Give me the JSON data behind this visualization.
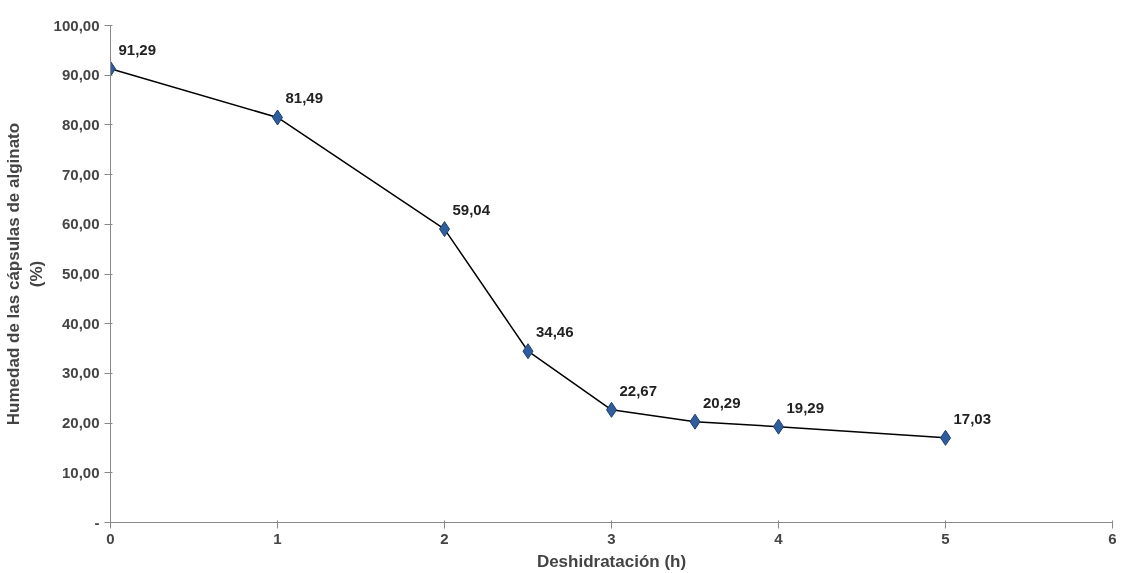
{
  "chart_data": {
    "type": "line",
    "xlabel": "Deshidratación (h)",
    "ylabel": "Humedad de las cápsulas de alginato\n(%)",
    "x": [
      0,
      1,
      2,
      2.5,
      3,
      3.5,
      4,
      5
    ],
    "series": [
      {
        "color": "#2e5e9e",
        "values": [
          91.29,
          81.49,
          59.04,
          34.46,
          22.67,
          20.29,
          19.29,
          17.03
        ],
        "value_labels": [
          "91,29",
          "81,49",
          "59,04",
          "34,46",
          "22,67",
          "20,29",
          "19,29",
          "17,03"
        ]
      }
    ],
    "xlim": [
      0,
      6
    ],
    "xticks": [
      0,
      1,
      2,
      3,
      4,
      5,
      6
    ],
    "ylim": [
      0,
      100
    ],
    "yticks": [
      {
        "value": 0,
        "label": "-"
      },
      {
        "value": 10,
        "label": "10,00"
      },
      {
        "value": 20,
        "label": "20,00"
      },
      {
        "value": 30,
        "label": "30,00"
      },
      {
        "value": 40,
        "label": "40,00"
      },
      {
        "value": 50,
        "label": "50,00"
      },
      {
        "value": 60,
        "label": "60,00"
      },
      {
        "value": 70,
        "label": "70,00"
      },
      {
        "value": 80,
        "label": "80,00"
      },
      {
        "value": 90,
        "label": "90,00"
      },
      {
        "value": 100,
        "label": "100,00"
      }
    ],
    "marker": "diamond",
    "grid": false
  }
}
